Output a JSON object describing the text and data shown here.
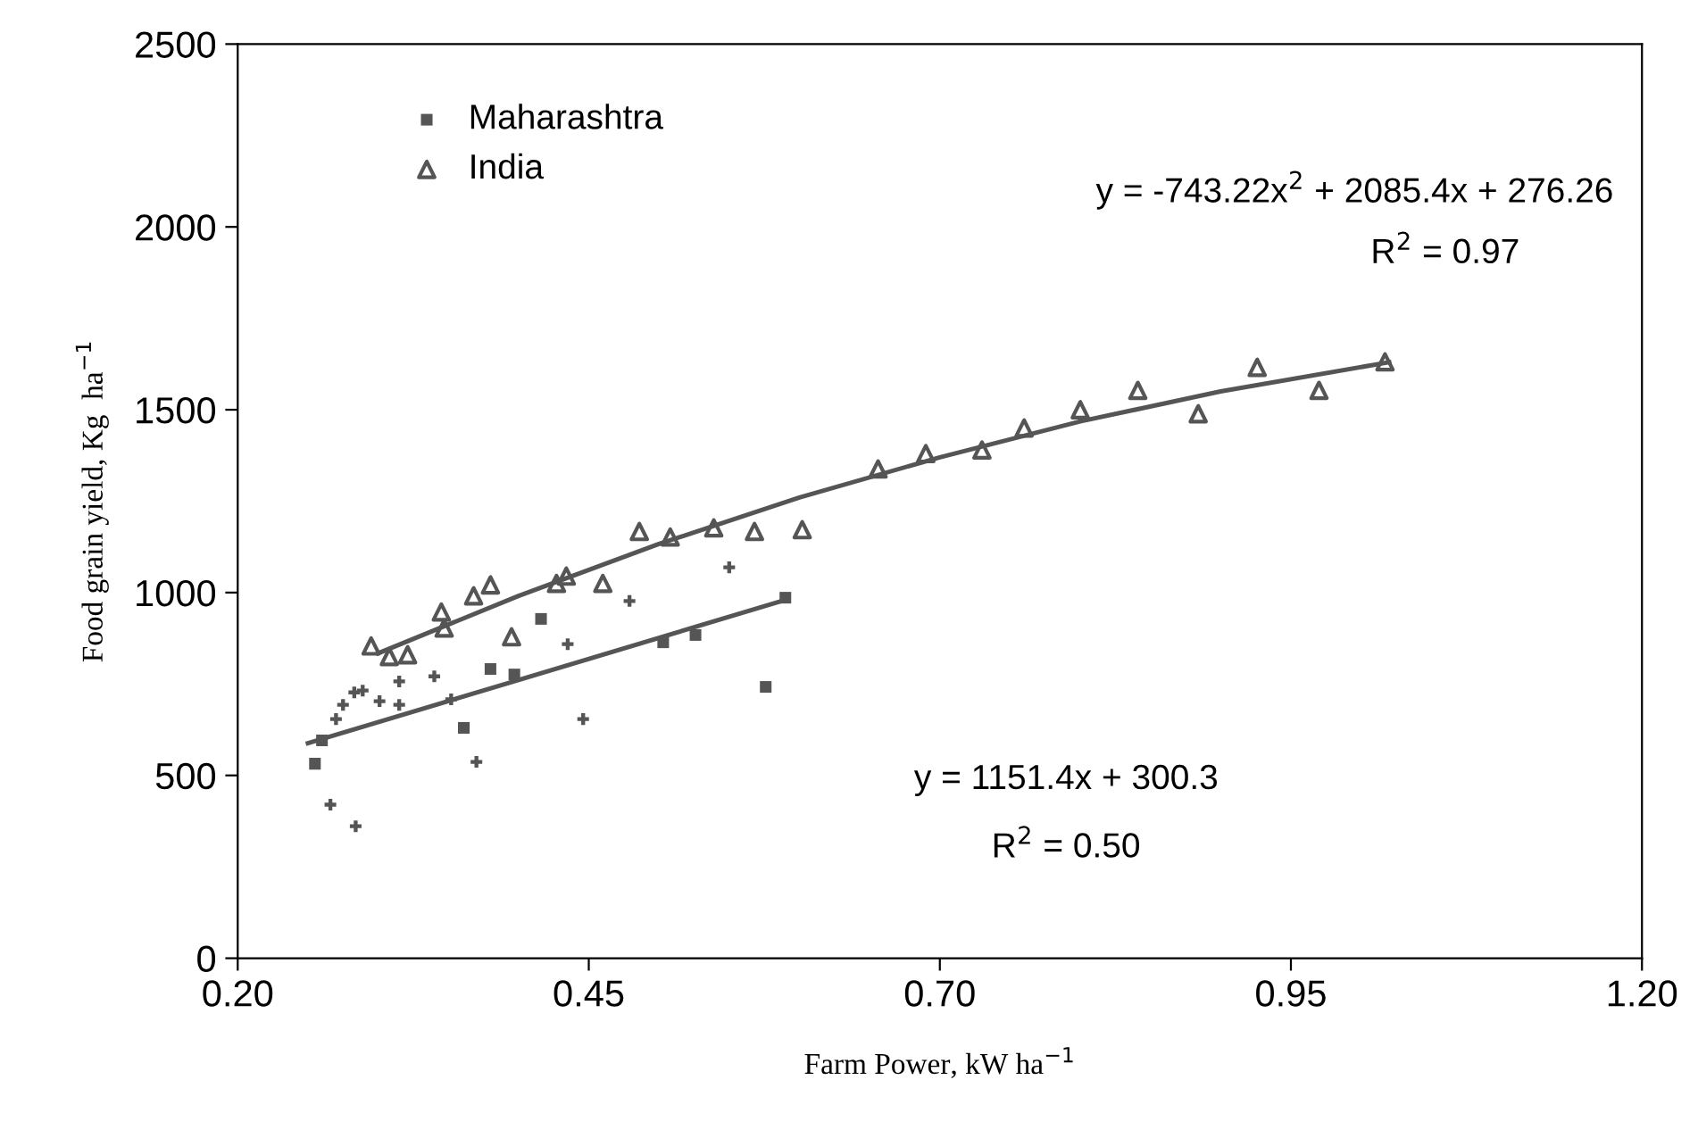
{
  "chart_data": {
    "type": "scatter",
    "xlabel": "Farm Power, kW ha$^{−1}$",
    "ylabel": "Food grain yield, Kg  ha$^{−1}$",
    "xlim": [
      0.2,
      1.2
    ],
    "ylim": [
      0,
      2500
    ],
    "xticks": [
      {
        "value": 0.2,
        "label": "0.20"
      },
      {
        "value": 0.45,
        "label": "0.45"
      },
      {
        "value": 0.7,
        "label": "0.70"
      },
      {
        "value": 0.95,
        "label": "0.95"
      },
      {
        "value": 1.2,
        "label": "1.20"
      }
    ],
    "yticks": [
      0,
      500,
      1000,
      1500,
      2000,
      2500
    ],
    "grid": false,
    "legend": "top left",
    "series": [
      {
        "name": "Maharashtra",
        "color": "#555555",
        "marker": "square",
        "x": [
          0.416,
          0.38,
          0.397,
          0.255,
          0.26,
          0.361,
          0.576,
          0.59,
          0.503,
          0.526
        ],
        "values": [
          928,
          791,
          776,
          532,
          596,
          630,
          742,
          986,
          864,
          884
        ]
      },
      {
        "name": "India",
        "color": "#555555",
        "marker": "triangle",
        "x": [
          0.295,
          0.308,
          0.321,
          0.345,
          0.347,
          0.368,
          0.38,
          0.395,
          0.427,
          0.434,
          0.46,
          0.486,
          0.508,
          0.539,
          0.568,
          0.602,
          0.656,
          0.69,
          0.73,
          0.76,
          0.8,
          0.841,
          0.884,
          0.926,
          0.97,
          1.017
        ],
        "values": [
          854,
          825,
          830,
          947,
          903,
          991,
          1021,
          879,
          1025,
          1045,
          1025,
          1167,
          1152,
          1177,
          1167,
          1172,
          1338,
          1380,
          1390,
          1450,
          1500,
          1553,
          1489,
          1616,
          1553,
          1631
        ]
      },
      {
        "color": "#555555",
        "marker": "cross",
        "x": [
          0.55,
          0.479,
          0.435,
          0.446,
          0.37,
          0.34,
          0.315,
          0.315,
          0.301,
          0.289,
          0.283,
          0.275,
          0.27,
          0.266,
          0.284,
          0.352
        ],
        "values": [
          1069,
          977,
          859,
          654,
          537,
          771,
          757,
          693,
          703,
          732,
          727,
          693,
          654,
          420,
          361,
          708
        ]
      },
      {
        "type": "line",
        "color": "#555555",
        "marker": "none",
        "x": [
          0.3,
          0.4,
          0.5,
          0.6,
          0.7,
          0.8,
          0.9,
          1.02
        ],
        "values": [
          834,
          991,
          1133,
          1260,
          1370,
          1468,
          1550,
          1630
        ]
      },
      {
        "type": "line",
        "color": "#555555",
        "marker": "none",
        "x": [
          0.25,
          0.59
        ],
        "values": [
          588,
          980
        ]
      }
    ],
    "annotations": [
      "y = -743.22x$^{2}$ + 2085.4x + 276.26",
      "R$^{2}$ = 0.97",
      "y = 1151.4x + 300.3",
      "R$^{2}$ = 0.50"
    ]
  }
}
